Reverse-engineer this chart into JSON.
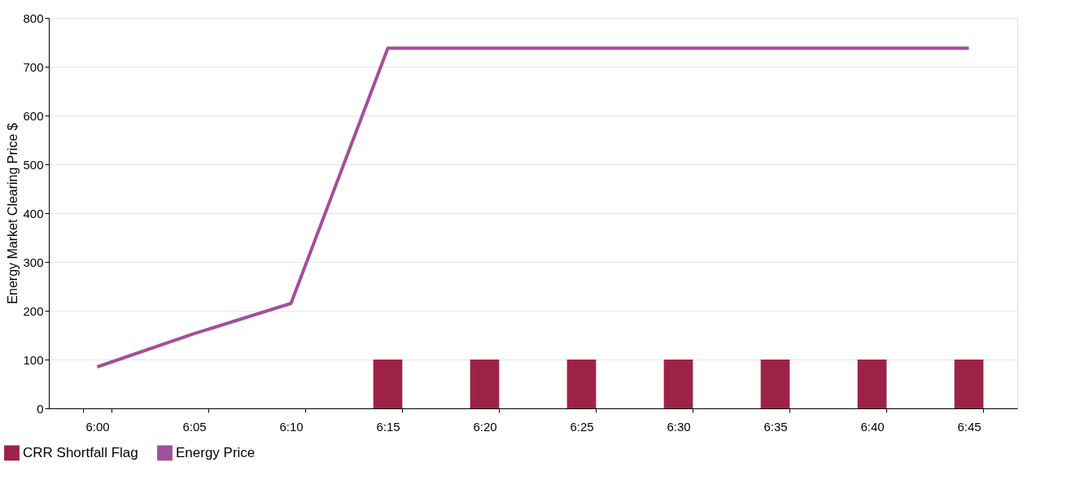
{
  "chart_data": {
    "type": "bar",
    "ylabel": "Energy Market Clearing Price $",
    "categories": [
      "6:00",
      "6:05",
      "6:10",
      "6:15",
      "6:20",
      "6:25",
      "6:30",
      "6:35",
      "6:40",
      "6:45"
    ],
    "series": [
      {
        "name": "CRR Shortfall Flag",
        "color": "#9e2246",
        "values": [
          null,
          null,
          null,
          100,
          100,
          100,
          100,
          100,
          100,
          100
        ]
      },
      {
        "name": "Energy Price",
        "type": "line",
        "color": "#a24f9c",
        "values": [
          85,
          153,
          215,
          738,
          738,
          738,
          738,
          738,
          738,
          738
        ]
      }
    ],
    "ylim": [
      0,
      800
    ],
    "yticks": [
      0,
      100,
      200,
      300,
      400,
      500,
      600,
      700,
      800
    ],
    "grid": "y",
    "legend": "bottom left",
    "marker": "none",
    "line_style": "solid"
  }
}
